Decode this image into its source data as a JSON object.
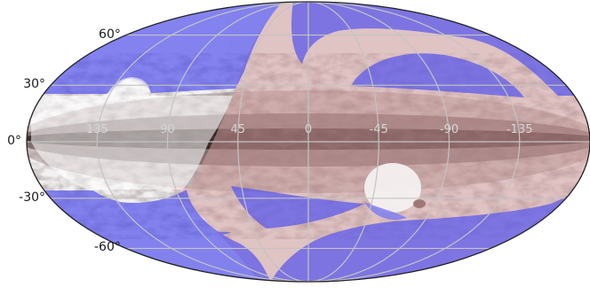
{
  "projection": "mollweide",
  "colors": {
    "graticule": "#c8c8c8",
    "outline": "#222222",
    "blue_mask": "#5555ee",
    "pink_band": "#d6a7a7",
    "dust_dark": "#2a1a1a"
  },
  "latitude_labels": [
    {
      "lat": 60,
      "text": "60°"
    },
    {
      "lat": 30,
      "text": "30°"
    },
    {
      "lat": 0,
      "text": "0°"
    },
    {
      "lat": -30,
      "text": "-30°"
    },
    {
      "lat": -60,
      "text": "-60°"
    }
  ],
  "longitude_labels": [
    {
      "lon": 135,
      "text": "135"
    },
    {
      "lon": 90,
      "text": "90"
    },
    {
      "lon": 45,
      "text": "45"
    },
    {
      "lon": 0,
      "text": "0"
    },
    {
      "lon": -45,
      "text": "-45"
    },
    {
      "lon": -90,
      "text": "-90"
    },
    {
      "lon": -135,
      "text": "-135"
    }
  ]
}
